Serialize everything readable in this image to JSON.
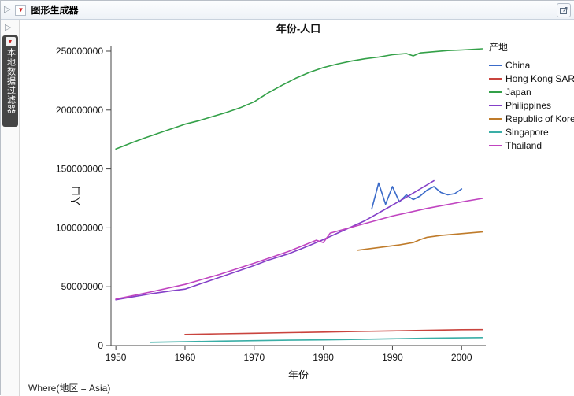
{
  "window": {
    "title": "图形生成器"
  },
  "icons": {
    "disclosure": "▷",
    "red_triangle": "▼"
  },
  "filter_panel": {
    "title": "本地数据过滤器"
  },
  "footer": {
    "where_text": "Where(地区 = Asia)"
  },
  "chart_data": {
    "type": "line",
    "title": "年份-人口",
    "xlabel": "年份",
    "ylabel": "人口",
    "legend_title": "产地",
    "legend_position": "right",
    "grid": false,
    "xlim": [
      1949.3,
      2003.5
    ],
    "ylim": [
      0,
      254000000
    ],
    "xticks": [
      1950,
      1960,
      1970,
      1980,
      1990,
      2000
    ],
    "yticks": [
      0,
      50000000,
      100000000,
      150000000,
      200000000,
      250000000
    ],
    "series": [
      {
        "name": "China",
        "color": "#3b6bc9",
        "points": [
          [
            1987,
            116000000
          ],
          [
            1988,
            138000000
          ],
          [
            1989,
            120000000
          ],
          [
            1990,
            135000000
          ],
          [
            1991,
            122000000
          ],
          [
            1992,
            128000000
          ],
          [
            1993,
            124000000
          ],
          [
            1994,
            127000000
          ],
          [
            1995,
            132000000
          ],
          [
            1996,
            135000000
          ],
          [
            1997,
            130000000
          ],
          [
            1998,
            128000000
          ],
          [
            1999,
            129000000
          ],
          [
            2000,
            133000000
          ]
        ]
      },
      {
        "name": "Hong Kong SAR",
        "color": "#c9443e",
        "points": [
          [
            1960,
            9500000
          ],
          [
            1965,
            10000000
          ],
          [
            1970,
            10500000
          ],
          [
            1975,
            11000000
          ],
          [
            1980,
            11500000
          ],
          [
            1985,
            12000000
          ],
          [
            1990,
            12500000
          ],
          [
            1995,
            13000000
          ],
          [
            2000,
            13500000
          ],
          [
            2003,
            13600000
          ]
        ]
      },
      {
        "name": "Japan",
        "color": "#33a048",
        "points": [
          [
            1950,
            167000000
          ],
          [
            1952,
            171500000
          ],
          [
            1954,
            176000000
          ],
          [
            1956,
            180000000
          ],
          [
            1958,
            184000000
          ],
          [
            1960,
            188000000
          ],
          [
            1962,
            191000000
          ],
          [
            1964,
            194500000
          ],
          [
            1966,
            198000000
          ],
          [
            1968,
            202000000
          ],
          [
            1970,
            207000000
          ],
          [
            1972,
            214500000
          ],
          [
            1974,
            221000000
          ],
          [
            1976,
            227000000
          ],
          [
            1978,
            232000000
          ],
          [
            1980,
            236000000
          ],
          [
            1982,
            239000000
          ],
          [
            1984,
            241500000
          ],
          [
            1986,
            243500000
          ],
          [
            1988,
            245000000
          ],
          [
            1990,
            247000000
          ],
          [
            1992,
            248000000
          ],
          [
            1993,
            246000000
          ],
          [
            1994,
            248500000
          ],
          [
            1996,
            249500000
          ],
          [
            1998,
            250500000
          ],
          [
            2000,
            251000000
          ],
          [
            2003,
            252000000
          ]
        ]
      },
      {
        "name": "Philippines",
        "color": "#8440c8",
        "points": [
          [
            1950,
            39000000
          ],
          [
            1955,
            44000000
          ],
          [
            1958,
            46500000
          ],
          [
            1960,
            48000000
          ],
          [
            1963,
            54000000
          ],
          [
            1966,
            60000000
          ],
          [
            1970,
            68000000
          ],
          [
            1972,
            72500000
          ],
          [
            1975,
            78000000
          ],
          [
            1978,
            85000000
          ],
          [
            1980,
            90000000
          ],
          [
            1983,
            98000000
          ],
          [
            1986,
            106000000
          ],
          [
            1989,
            116000000
          ],
          [
            1992,
            126000000
          ],
          [
            1994,
            133000000
          ],
          [
            1996,
            140000000
          ]
        ]
      },
      {
        "name": "Republic of Korea",
        "color": "#bf7b2a",
        "points": [
          [
            1985,
            81000000
          ],
          [
            1987,
            82500000
          ],
          [
            1989,
            84000000
          ],
          [
            1991,
            85500000
          ],
          [
            1993,
            87500000
          ],
          [
            1994,
            90000000
          ],
          [
            1995,
            92000000
          ],
          [
            1997,
            93500000
          ],
          [
            1999,
            94500000
          ],
          [
            2001,
            95500000
          ],
          [
            2003,
            96500000
          ]
        ]
      },
      {
        "name": "Singapore",
        "color": "#3aaea6",
        "points": [
          [
            1955,
            2800000
          ],
          [
            1960,
            3300000
          ],
          [
            1965,
            3800000
          ],
          [
            1970,
            4200000
          ],
          [
            1975,
            4600000
          ],
          [
            1980,
            4900000
          ],
          [
            1985,
            5300000
          ],
          [
            1990,
            5800000
          ],
          [
            1995,
            6300000
          ],
          [
            2000,
            6600000
          ],
          [
            2003,
            6800000
          ]
        ]
      },
      {
        "name": "Thailand",
        "color": "#c044c0",
        "points": [
          [
            1950,
            39500000
          ],
          [
            1955,
            45500000
          ],
          [
            1960,
            52000000
          ],
          [
            1965,
            60500000
          ],
          [
            1970,
            70000000
          ],
          [
            1975,
            80000000
          ],
          [
            1979,
            89500000
          ],
          [
            1980,
            87500000
          ],
          [
            1981,
            95500000
          ],
          [
            1985,
            102000000
          ],
          [
            1990,
            110000000
          ],
          [
            1995,
            116500000
          ],
          [
            2000,
            122000000
          ],
          [
            2003,
            125000000
          ]
        ]
      }
    ]
  }
}
